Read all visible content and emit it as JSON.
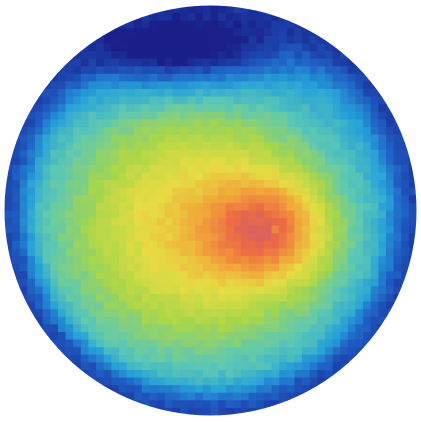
{
  "chart_data": {
    "type": "heatmap",
    "shape": "circular",
    "grid_resolution": 54,
    "colormap": "parula",
    "colormap_stops": [
      "#1a1f8a",
      "#1f5fc4",
      "#27a2d9",
      "#5cc8b4",
      "#a8d64a",
      "#e6dc43",
      "#f2a43a",
      "#ec6a44",
      "#c8587a"
    ],
    "outside_color": "#ffffff",
    "axes": "none",
    "colorbar": "none",
    "field": {
      "background_level": 0.05,
      "plateau": {
        "center": [
          0.47,
          0.54
        ],
        "radii": [
          0.34,
          0.31
        ],
        "peak": 0.62
      },
      "hotspot": {
        "center": [
          0.64,
          0.55
        ],
        "radii": [
          0.14,
          0.12
        ],
        "peak": 0.33
      },
      "peak_pixel": {
        "center": [
          0.66,
          0.548
        ],
        "value": 1.0
      },
      "rim_falloff": {
        "start": 0.8,
        "end": 1.0
      },
      "dark_cap": {
        "center": [
          0.42,
          0.1
        ],
        "radii": [
          0.26,
          0.1
        ],
        "depth": 0.55
      }
    }
  }
}
